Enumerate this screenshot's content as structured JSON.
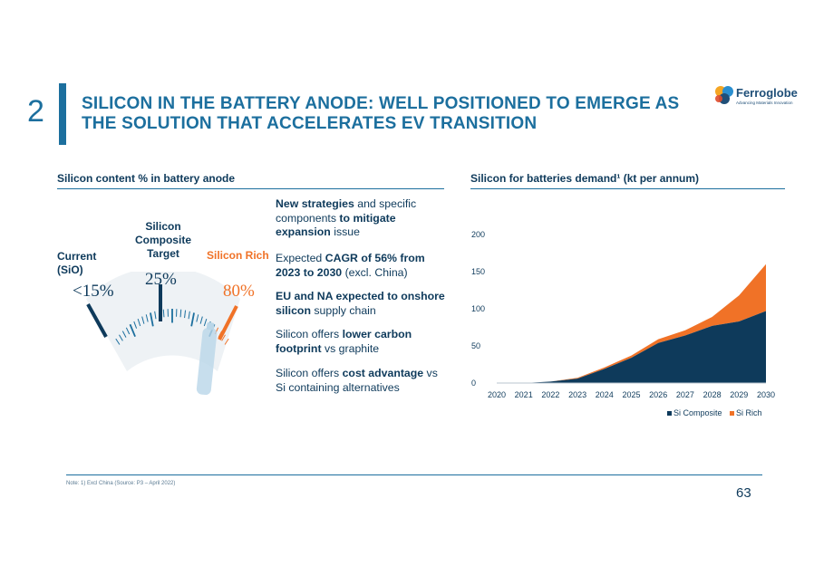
{
  "header": {
    "section_number": "2",
    "title": "SILICON IN THE BATTERY ANODE: WELL POSITIONED TO EMERGE AS THE SOLUTION THAT ACCELERATES EV TRANSITION",
    "logo_name": "Ferroglobe",
    "logo_tagline": "Advancing Materials Innovation"
  },
  "left_panel": {
    "heading": "Silicon content % in battery anode",
    "gauge": {
      "current_label": "Current (SiO)",
      "current_value": "<15%",
      "target_label": "Silicon Composite Target",
      "target_value": "25%",
      "rich_label": "Silicon Rich",
      "rich_value": "80%"
    }
  },
  "bullets": [
    {
      "parts": [
        [
          "New strategies",
          true
        ],
        [
          " and specific components ",
          false
        ],
        [
          "to mitigate expansion",
          true
        ],
        [
          " issue",
          false
        ]
      ]
    },
    {
      "parts": [
        [
          "Expected ",
          false
        ],
        [
          "CAGR of 56% from 2023 to 2030",
          true
        ],
        [
          " (excl. China)",
          false
        ]
      ]
    },
    {
      "parts": [
        [
          "EU and NA expected to onshore silicon",
          true
        ],
        [
          " supply chain",
          false
        ]
      ]
    },
    {
      "parts": [
        [
          "Silicon offers ",
          false
        ],
        [
          "lower carbon footprint",
          true
        ],
        [
          " vs graphite",
          false
        ]
      ]
    },
    {
      "parts": [
        [
          "Silicon offers ",
          false
        ],
        [
          "cost advantage",
          true
        ],
        [
          " vs Si containing alternatives",
          false
        ]
      ]
    }
  ],
  "right_panel": {
    "heading": "Silicon for batteries demand¹  (kt per annum)"
  },
  "chart_data": {
    "type": "area",
    "title": "Silicon for batteries demand¹  (kt per annum)",
    "x": [
      "2020",
      "2021",
      "2022",
      "2023",
      "2024",
      "2025",
      "2026",
      "2027",
      "2028",
      "2029",
      "2030"
    ],
    "ylim": [
      0,
      200
    ],
    "yticks": [
      0,
      50,
      100,
      150,
      200
    ],
    "stacked": true,
    "legend_position": "bottom-right",
    "series": [
      {
        "name": "Si Composite",
        "color": "#0e3a5b",
        "values": [
          0,
          0,
          2,
          6,
          19,
          34,
          54,
          64,
          77,
          83,
          97
        ]
      },
      {
        "name": "Si Rich",
        "color": "#f07227",
        "values": [
          0,
          0,
          0,
          1,
          2,
          3,
          5,
          7,
          12,
          35,
          63
        ]
      }
    ]
  },
  "footer": {
    "note": "Note:  1) Excl China (Source: P3 – April 2022)",
    "page_number": "63"
  },
  "colors": {
    "brand_blue": "#1c6f9e",
    "navy": "#0e3a5b",
    "orange": "#f07227"
  }
}
